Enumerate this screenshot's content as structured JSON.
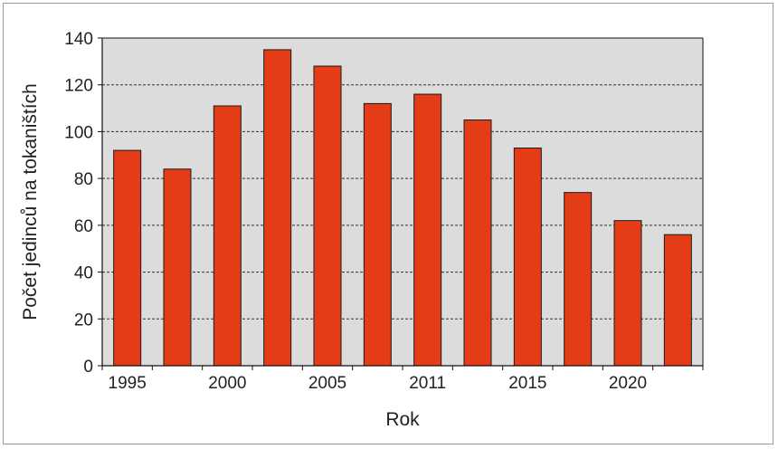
{
  "chart_data": {
    "type": "bar",
    "categories": [
      "1995",
      "",
      "2000",
      "",
      "2005",
      "",
      "2011",
      "",
      "2015",
      "",
      "2020",
      ""
    ],
    "values": [
      92,
      84,
      111,
      135,
      128,
      112,
      116,
      105,
      93,
      74,
      62,
      56
    ],
    "xlabel": "Rok",
    "ylabel": "Počet jedinců na tokaništích",
    "ylim": [
      0,
      140
    ],
    "yticks": [
      0,
      20,
      40,
      60,
      80,
      100,
      120,
      140
    ],
    "grid": true,
    "legend": "none",
    "colors": {
      "bar": "#e33c17",
      "bar_stroke": "#1a1a1a",
      "plot_bg": "#dcdcdc",
      "grid": "#333333"
    }
  }
}
